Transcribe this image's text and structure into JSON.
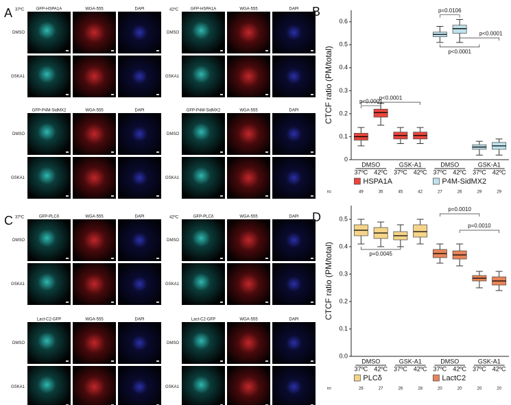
{
  "figure": [
    {
      "letter": "A",
      "groups": [
        {
          "temp": "37ºC",
          "columns": [
            "GFP-HSPA1A",
            "WGA-555",
            "DAPI"
          ],
          "rows": [
            "DMSO",
            "GSKA1"
          ]
        },
        {
          "temp": "42ºC",
          "columns": [
            "GFP-HSPA1A",
            "WGA-555",
            "DAPI"
          ],
          "rows": [
            "DMSO",
            "GSKA1"
          ]
        },
        {
          "columns": [
            "GFP-P4M-SidMX2",
            "WGA-555",
            "DAPI"
          ],
          "rows": [
            "DMSO",
            "GSKA1"
          ]
        },
        {
          "columns": [
            "GFP-P4M-SidMX2",
            "WGA-555",
            "DAPI"
          ],
          "rows": [
            "DMSO",
            "GSKA1"
          ]
        }
      ]
    },
    {
      "letter": "C",
      "groups": [
        {
          "temp": "37ºC",
          "columns": [
            "GFP-PLCδ",
            "WGA-555",
            "DAPI"
          ],
          "rows": [
            "DMSO",
            "GSKA1"
          ]
        },
        {
          "temp": "42ºC",
          "columns": [
            "GFP-PLCδ",
            "WGA-555",
            "DAPI"
          ],
          "rows": [
            "DMSO",
            "GSKA1"
          ]
        },
        {
          "columns": [
            "Lact-C2-GFP",
            "WGA-555",
            "DAPI"
          ],
          "rows": [
            "DMSO",
            "GSKA1"
          ]
        },
        {
          "columns": [
            "Lact-C2-GFP",
            "WGA-555",
            "DAPI"
          ],
          "rows": [
            "DMSO",
            "GSKA1"
          ]
        }
      ]
    }
  ],
  "chart_data": [
    {
      "type": "box",
      "letter": "B",
      "y_label": "CTCF ratio (PM/total)",
      "ylim": [
        0,
        0.65
      ],
      "yticks": [
        0,
        0.1,
        0.2,
        0.3,
        0.4,
        0.5,
        0.6
      ],
      "groups": [
        "DMSO",
        "GSK-A1"
      ],
      "temps": [
        "37ºC",
        "42ºC"
      ],
      "n_label": "n=",
      "annotations": [
        "p<0.0001",
        "p<0.0001",
        "p=0.0106",
        "p<0.0001",
        "p<0.0001"
      ],
      "series": [
        {
          "name": "HSPA1A",
          "color": "#e8463c",
          "median": [
            0.1,
            0.205,
            0.105,
            0.105
          ],
          "q1": [
            0.085,
            0.185,
            0.09,
            0.09
          ],
          "q3": [
            0.115,
            0.22,
            0.12,
            0.12
          ],
          "whislo": [
            0.06,
            0.15,
            0.07,
            0.07
          ],
          "whishi": [
            0.14,
            0.245,
            0.14,
            0.14
          ],
          "n": [
            49,
            35,
            45,
            42
          ]
        },
        {
          "name": "P4M-SidMX2",
          "color": "#bfe3ee",
          "median": [
            0.545,
            0.57,
            0.055,
            0.06
          ],
          "q1": [
            0.535,
            0.55,
            0.045,
            0.045
          ],
          "q3": [
            0.555,
            0.585,
            0.065,
            0.075
          ],
          "whislo": [
            0.51,
            0.51,
            0.02,
            0.02
          ],
          "whishi": [
            0.58,
            0.61,
            0.08,
            0.09
          ],
          "n": [
            27,
            26,
            29,
            29
          ]
        }
      ]
    },
    {
      "type": "box",
      "letter": "D",
      "y_label": "CTCF ratio (PM/total)",
      "ylim": [
        0,
        0.55
      ],
      "yticks": [
        {
          "value": 0,
          "label": "0.0"
        },
        0.1,
        0.2,
        0.3,
        0.4,
        0.5
      ],
      "groups": [
        "DMSO",
        "GSK-A1"
      ],
      "temps": [
        "37ºC",
        "42ºC"
      ],
      "n_label": "n=",
      "annotations": [
        "p=0.0045",
        "p=0.0010",
        "p=0.0010"
      ],
      "series": [
        {
          "name": "PLCδ",
          "color": "#f5d48a",
          "median": [
            0.46,
            0.45,
            0.44,
            0.455
          ],
          "q1": [
            0.44,
            0.43,
            0.425,
            0.435
          ],
          "q3": [
            0.48,
            0.47,
            0.455,
            0.48
          ],
          "whislo": [
            0.41,
            0.4,
            0.4,
            0.41
          ],
          "whishi": [
            0.5,
            0.49,
            0.48,
            0.5
          ],
          "n": [
            26,
            27,
            26,
            28
          ]
        },
        {
          "name": "LactC2",
          "color": "#e8845a",
          "median": [
            0.375,
            0.37,
            0.285,
            0.275
          ],
          "q1": [
            0.36,
            0.355,
            0.275,
            0.26
          ],
          "q3": [
            0.39,
            0.385,
            0.295,
            0.29
          ],
          "whislo": [
            0.34,
            0.33,
            0.25,
            0.24
          ],
          "whishi": [
            0.41,
            0.41,
            0.31,
            0.31
          ],
          "n": [
            20,
            20,
            20,
            20
          ]
        }
      ]
    }
  ]
}
